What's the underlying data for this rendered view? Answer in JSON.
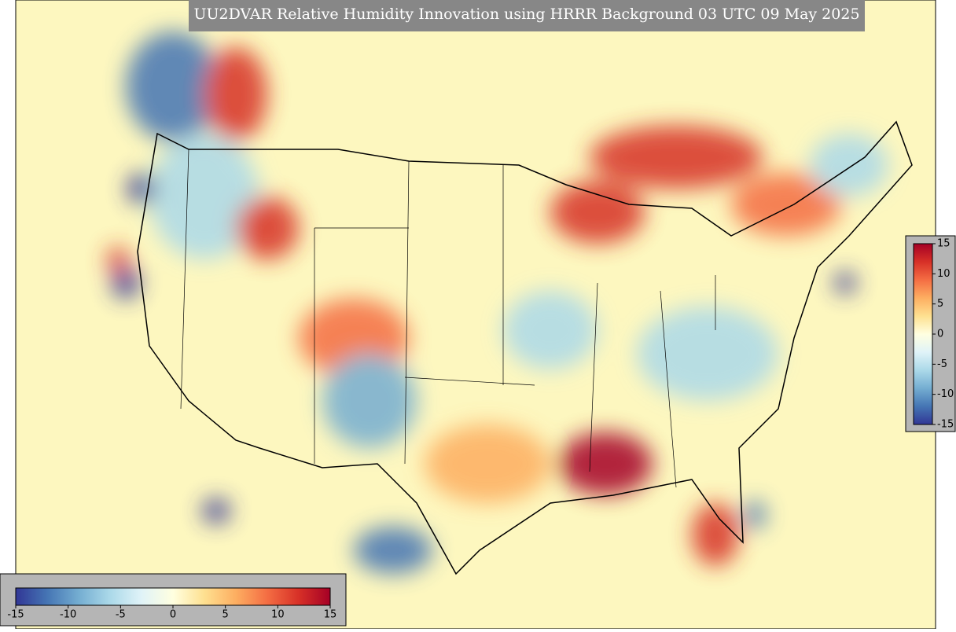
{
  "title": "UU2DVAR Relative Humidity Innovation using HRRR Background 03 UTC 09 May 2025",
  "colormap": [
    "#313695",
    "#4575b4",
    "#74add1",
    "#abd9e9",
    "#e0f3f8",
    "#ffffe0",
    "#fee090",
    "#fdae61",
    "#f46d43",
    "#d73027",
    "#a50026"
  ],
  "horizontal_colorbar": {
    "range": [
      -15,
      15
    ],
    "ticks": [
      -15,
      -10,
      -5,
      0,
      5,
      10,
      15
    ]
  },
  "vertical_colorbar": {
    "range": [
      -15,
      15
    ],
    "ticks": [
      15,
      10,
      5,
      0,
      -5,
      -10,
      -15
    ]
  }
}
